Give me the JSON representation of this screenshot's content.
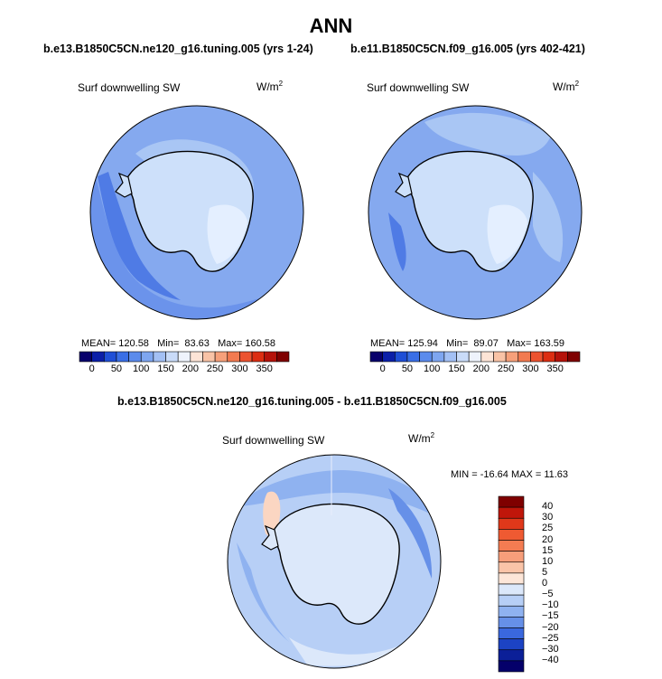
{
  "title": "ANN",
  "panels": [
    {
      "subtitle": "b.e13.B1850C5CN.ne120_g16.tuning.005 (yrs 1-24)",
      "variable": "Surf downwelling SW",
      "units": "W/m",
      "units_exp": "2",
      "mean_label": "MEAN=",
      "mean": "120.58",
      "min_label": "Min=",
      "min": "83.63",
      "max_label": "Max=",
      "max": "160.58"
    },
    {
      "subtitle": "b.e11.B1850C5CN.f09_g16.005 (yrs 402-421)",
      "variable": "Surf downwelling SW",
      "units": "W/m",
      "units_exp": "2",
      "mean_label": "MEAN=",
      "mean": "125.94",
      "min_label": "Min=",
      "min": "89.07",
      "max_label": "Max=",
      "max": "163.59"
    }
  ],
  "diff": {
    "subtitle": "b.e13.B1850C5CN.ne120_g16.tuning.005 - b.e11.B1850C5CN.f09_g16.005",
    "variable": "Surf downwelling SW",
    "units": "W/m",
    "units_exp": "2",
    "minmax": "MIN = -16.64 MAX =  11.63"
  },
  "colorbar_abs": {
    "labels": [
      "0",
      "50",
      "100",
      "150",
      "200",
      "250",
      "300",
      "350"
    ],
    "colors": [
      "#08006b",
      "#0b1fa8",
      "#1f4fd6",
      "#3a6fe6",
      "#5b8bec",
      "#7ea6f0",
      "#a3c0f4",
      "#c9dbf8",
      "#eef3fc",
      "#fde4d6",
      "#f9c3a6",
      "#f6a07a",
      "#f27a50",
      "#ec5330",
      "#dc2e12",
      "#b5120a",
      "#7f0000"
    ]
  },
  "colorbar_diff": {
    "labels": [
      "40",
      "30",
      "25",
      "20",
      "15",
      "10",
      "5",
      "0",
      "−5",
      "−10",
      "−15",
      "−20",
      "−25",
      "−30",
      "−40"
    ],
    "colors": [
      "#7f0000",
      "#c0160a",
      "#e0381a",
      "#ef5a32",
      "#f47c52",
      "#f79e7a",
      "#fac4a8",
      "#fde6d8",
      "#dce8fa",
      "#b7cff6",
      "#8fb2f0",
      "#6690e8",
      "#3a68de",
      "#1c43c4",
      "#0b1f98",
      "#04006a"
    ]
  },
  "map_colors": {
    "ocean_a": "#85a9ef",
    "ocean_b": "#6b93eb",
    "ocean_c": "#4f7be5",
    "ice_a": "#a9c6f4",
    "ice_b": "#cde0fa",
    "ice_c": "#e4efff",
    "pos": "#fbd6c2",
    "land_line": "#000000"
  }
}
